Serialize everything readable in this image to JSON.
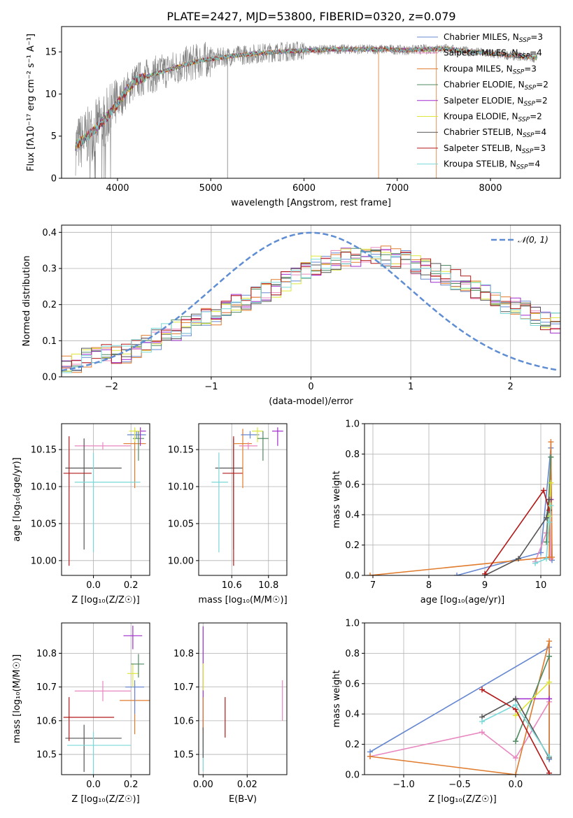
{
  "figure": {
    "title": "PLATE=2427, MJD=53800, FIBERID=0320, z=0.079"
  },
  "chart_data": [
    {
      "id": "spectrum",
      "type": "line",
      "title": "PLATE=2427, MJD=53800, FIBERID=0320, z=0.079",
      "xlabel": "wavelength [Angstrom, rest frame]",
      "ylabel": "Flux [fλ10⁻¹⁷ erg cm⁻² s⁻¹ A⁻¹]",
      "xlim": [
        3400,
        8750
      ],
      "ylim": [
        0,
        18
      ],
      "xticks": [
        4000,
        5000,
        6000,
        7000,
        8000
      ],
      "yticks": [
        0,
        5,
        10,
        15
      ],
      "grid": false,
      "legend_position": "top-right",
      "data_line_color": "#808080",
      "continuum": {
        "x": [
          3550,
          3700,
          3850,
          4000,
          4100,
          4200,
          4350,
          4500,
          4700,
          4900,
          5100,
          5300,
          5500,
          5700,
          5900,
          6100,
          6300,
          6500,
          6700,
          6900,
          7100,
          7300,
          7500,
          7700,
          7900,
          8100,
          8300,
          8500
        ],
        "y": [
          3.8,
          5.2,
          6.8,
          8.8,
          10.5,
          11.6,
          12.2,
          12.7,
          13.4,
          14.0,
          14.3,
          14.6,
          14.8,
          15.0,
          15.1,
          15.2,
          15.3,
          15.3,
          15.3,
          15.3,
          15.2,
          15.3,
          15.4,
          15.1,
          14.9,
          14.7,
          14.5,
          14.3
        ]
      },
      "series": [
        {
          "name": "Chabrier MILES, N_SSP=3",
          "label_main": "Chabrier MILES, N",
          "label_sub": "SSP",
          "label_tail": "=3",
          "color": "#6688d0"
        },
        {
          "name": "Salpeter MILES, N_SSP=4",
          "label_main": "Salpeter MILES, N",
          "label_sub": "SSP",
          "label_tail": "=4",
          "color": "#e887bf"
        },
        {
          "name": "Kroupa MILES, N_SSP=3",
          "label_main": "Kroupa MILES, N",
          "label_sub": "SSP",
          "label_tail": "=3",
          "color": "#e07b2d"
        },
        {
          "name": "Chabrier ELODIE, N_SSP=2",
          "label_main": "Chabrier ELODIE, N",
          "label_sub": "SSP",
          "label_tail": "=2",
          "color": "#4f8a60"
        },
        {
          "name": "Salpeter ELODIE, N_SSP=2",
          "label_main": "Salpeter ELODIE, N",
          "label_sub": "SSP",
          "label_tail": "=2",
          "color": "#a02ccd"
        },
        {
          "name": "Kroupa ELODIE, N_SSP=2",
          "label_main": "Kroupa ELODIE, N",
          "label_sub": "SSP",
          "label_tail": "=2",
          "color": "#dde63a"
        },
        {
          "name": "Chabrier STELIB, N_SSP=4",
          "label_main": "Chabrier STELIB, N",
          "label_sub": "SSP",
          "label_tail": "=4",
          "color": "#555555"
        },
        {
          "name": "Salpeter STELIB, N_SSP=3",
          "label_main": "Salpeter STELIB, N",
          "label_sub": "SSP",
          "label_tail": "=3",
          "color": "#b31919"
        },
        {
          "name": "Kroupa STELIB, N_SSP=4",
          "label_main": "Kroupa STELIB, N",
          "label_sub": "SSP",
          "label_tail": "=4",
          "color": "#7ad8d8"
        }
      ]
    },
    {
      "id": "residuals",
      "type": "bar",
      "xlabel": "(data-model)/error",
      "ylabel": "Normed distribution",
      "xlim": [
        -2.5,
        2.5
      ],
      "ylim": [
        0,
        0.42
      ],
      "xticks": [
        -2,
        -1,
        0,
        1,
        2
      ],
      "yticks": [
        0.0,
        0.1,
        0.2,
        0.3,
        0.4
      ],
      "grid": true,
      "legend_position": "top-right",
      "reference_curve": {
        "name": "𝒩(0, 1)",
        "mean": 0,
        "sigma": 1,
        "color": "#5f8dd3",
        "dash": true
      },
      "bin_width": 0.1,
      "bin_start": -2.5,
      "base_profile": [
        0.03,
        0.04,
        0.05,
        0.06,
        0.06,
        0.062,
        0.065,
        0.075,
        0.09,
        0.105,
        0.12,
        0.13,
        0.14,
        0.15,
        0.16,
        0.17,
        0.185,
        0.2,
        0.21,
        0.22,
        0.235,
        0.25,
        0.265,
        0.28,
        0.295,
        0.305,
        0.315,
        0.32,
        0.33,
        0.335,
        0.34,
        0.34,
        0.335,
        0.33,
        0.32,
        0.31,
        0.3,
        0.29,
        0.28,
        0.27,
        0.255,
        0.24,
        0.23,
        0.215,
        0.2,
        0.19,
        0.18,
        0.17,
        0.16,
        0.15,
        0.14,
        0.13,
        0.12,
        0.11,
        0.1,
        0.095,
        0.09,
        0.085,
        0.08,
        0.075,
        0.07,
        0.065,
        0.06,
        0.055,
        0.05,
        0.045,
        0.04,
        0.035,
        0.03,
        0.025,
        0.02,
        0.018,
        0.016,
        0.014,
        0.012,
        0.01
      ]
    },
    {
      "id": "age_vs_Z",
      "type": "scatter",
      "xlabel": "Z [log₁₀(Z/Z☉)]",
      "ylabel": "age  [log₁₀(age/yr)]",
      "xlim": [
        -0.17,
        0.3
      ],
      "ylim": [
        9.98,
        10.185
      ],
      "xticks": [
        0.0,
        0.2
      ],
      "yticks": [
        10.0,
        10.05,
        10.1,
        10.15
      ],
      "grid": true,
      "points": [
        {
          "x": 0.05,
          "y": 10.155,
          "xerr": [
            0.15,
            0.15
          ],
          "yerr": [
            0.005,
            0.005
          ],
          "color": "#e887bf"
        },
        {
          "x": 0.23,
          "y": 10.17,
          "xerr": [
            0.05,
            0.05
          ],
          "yerr": [
            0.005,
            0.005
          ],
          "color": "#6688d0"
        },
        {
          "x": 0.22,
          "y": 10.158,
          "xerr": [
            0.06,
            0.06
          ],
          "yerr": [
            0.06,
            0.02
          ],
          "color": "#e07b2d"
        },
        {
          "x": 0.24,
          "y": 10.165,
          "xerr": [
            0.03,
            0.03
          ],
          "yerr": [
            0.03,
            0.01
          ],
          "color": "#4f8a60"
        },
        {
          "x": 0.25,
          "y": 10.175,
          "xerr": [
            0.03,
            0.03
          ],
          "yerr": [
            0.02,
            0.005
          ],
          "color": "#a02ccd"
        },
        {
          "x": 0.22,
          "y": 10.175,
          "xerr": [
            0.03,
            0.03
          ],
          "yerr": [
            0.015,
            0.005
          ],
          "color": "#dde63a"
        },
        {
          "x": -0.05,
          "y": 10.125,
          "xerr": [
            0.1,
            0.2
          ],
          "yerr": [
            0.11,
            0.04
          ],
          "color": "#555555"
        },
        {
          "x": -0.13,
          "y": 10.118,
          "xerr": [
            0.03,
            0.12
          ],
          "yerr": [
            0.125,
            0.05
          ],
          "color": "#b31919"
        },
        {
          "x": 0.0,
          "y": 10.106,
          "xerr": [
            0.1,
            0.25
          ],
          "yerr": [
            0.095,
            0.04
          ],
          "color": "#7ad8d8"
        }
      ]
    },
    {
      "id": "age_vs_mass",
      "type": "scatter",
      "xlabel": "mass [log₁₀(M/M☉)]",
      "ylabel": "",
      "xlim": [
        10.42,
        10.9
      ],
      "ylim": [
        9.98,
        10.185
      ],
      "xticks": [
        10.6,
        10.8
      ],
      "yticks": [
        10.0,
        10.05,
        10.1,
        10.15
      ],
      "grid": true,
      "points": [
        {
          "x": 10.61,
          "y": 10.125,
          "xerr": [
            0.1,
            0.05
          ],
          "yerr": [
            0.11,
            0.04
          ],
          "color": "#555555"
        },
        {
          "x": 10.61,
          "y": 10.118,
          "xerr": [
            0.06,
            0.05
          ],
          "yerr": [
            0.125,
            0.05
          ],
          "color": "#b31919"
        },
        {
          "x": 10.53,
          "y": 10.106,
          "xerr": [
            0.04,
            0.05
          ],
          "yerr": [
            0.095,
            0.04
          ],
          "color": "#7ad8d8"
        },
        {
          "x": 10.66,
          "y": 10.158,
          "xerr": [
            0.05,
            0.05
          ],
          "yerr": [
            0.06,
            0.02
          ],
          "color": "#e07b2d"
        },
        {
          "x": 10.69,
          "y": 10.155,
          "xerr": [
            0.05,
            0.05
          ],
          "yerr": [
            0.005,
            0.005
          ],
          "color": "#e887bf"
        },
        {
          "x": 10.7,
          "y": 10.17,
          "xerr": [
            0.05,
            0.05
          ],
          "yerr": [
            0.005,
            0.005
          ],
          "color": "#6688d0"
        },
        {
          "x": 10.74,
          "y": 10.175,
          "xerr": [
            0.03,
            0.03
          ],
          "yerr": [
            0.015,
            0.005
          ],
          "color": "#dde63a"
        },
        {
          "x": 10.77,
          "y": 10.165,
          "xerr": [
            0.03,
            0.03
          ],
          "yerr": [
            0.03,
            0.01
          ],
          "color": "#4f8a60"
        },
        {
          "x": 10.85,
          "y": 10.175,
          "xerr": [
            0.03,
            0.03
          ],
          "yerr": [
            0.02,
            0.005
          ],
          "color": "#a02ccd"
        }
      ]
    },
    {
      "id": "mass_weight_vs_age",
      "type": "line",
      "xlabel": "age  [log₁₀(age/yr)]",
      "ylabel": "mass weight",
      "xlim": [
        6.85,
        10.35
      ],
      "ylim": [
        0,
        1
      ],
      "xticks": [
        7,
        8,
        9,
        10
      ],
      "yticks": [
        0.0,
        0.2,
        0.4,
        0.6,
        0.8,
        1.0
      ],
      "grid": true,
      "series": [
        {
          "color": "#6688d0",
          "x": [
            8.5,
            10.0,
            10.18,
            10.2
          ],
          "y": [
            0.0,
            0.15,
            0.84,
            0.1
          ]
        },
        {
          "color": "#e887bf",
          "x": [
            9.9,
            10.1,
            10.15,
            10.18
          ],
          "y": [
            0.09,
            0.28,
            0.48,
            0.11
          ]
        },
        {
          "color": "#e07b2d",
          "x": [
            6.95,
            10.15,
            10.18,
            10.2
          ],
          "y": [
            0.0,
            0.12,
            0.88,
            0.12
          ]
        },
        {
          "color": "#4f8a60",
          "x": [
            10.1,
            10.18
          ],
          "y": [
            0.22,
            0.78
          ]
        },
        {
          "color": "#a02ccd",
          "x": [
            10.15,
            10.18
          ],
          "y": [
            0.5,
            0.5
          ]
        },
        {
          "color": "#dde63a",
          "x": [
            10.15,
            10.18
          ],
          "y": [
            0.39,
            0.61
          ]
        },
        {
          "color": "#555555",
          "x": [
            9.0,
            9.6,
            10.1,
            10.15
          ],
          "y": [
            0.0,
            0.11,
            0.38,
            0.5
          ]
        },
        {
          "color": "#b31919",
          "x": [
            9.0,
            10.05,
            10.15
          ],
          "y": [
            0.01,
            0.56,
            0.43
          ]
        },
        {
          "color": "#7ad8d8",
          "x": [
            9.9,
            10.1,
            10.15,
            10.18
          ],
          "y": [
            0.08,
            0.11,
            0.35,
            0.46
          ]
        }
      ]
    },
    {
      "id": "mass_vs_Z",
      "type": "scatter",
      "xlabel": "Z [log₁₀(Z/Z☉)]",
      "ylabel": "mass [log₁₀(M/M☉)]",
      "xlim": [
        -0.17,
        0.3
      ],
      "ylim": [
        10.44,
        10.89
      ],
      "xticks": [
        0.0,
        0.2
      ],
      "yticks": [
        10.5,
        10.6,
        10.7,
        10.8
      ],
      "grid": true,
      "points": [
        {
          "x": -0.05,
          "y": 10.548,
          "xerr": [
            0.1,
            0.2
          ],
          "yerr": [
            0.1,
            0.04
          ],
          "color": "#555555"
        },
        {
          "x": -0.13,
          "y": 10.61,
          "xerr": [
            0.03,
            0.24
          ],
          "yerr": [
            0.07,
            0.06
          ],
          "color": "#b31919"
        },
        {
          "x": 0.0,
          "y": 10.527,
          "xerr": [
            0.14,
            0.2
          ],
          "yerr": [
            0.1,
            0.04
          ],
          "color": "#7ad8d8"
        },
        {
          "x": 0.22,
          "y": 10.66,
          "xerr": [
            0.08,
            0.08
          ],
          "yerr": [
            0.1,
            0.05
          ],
          "color": "#e07b2d"
        },
        {
          "x": 0.05,
          "y": 10.688,
          "xerr": [
            0.15,
            0.15
          ],
          "yerr": [
            0.03,
            0.03
          ],
          "color": "#e887bf"
        },
        {
          "x": 0.22,
          "y": 10.7,
          "xerr": [
            0.05,
            0.05
          ],
          "yerr": [
            0.08,
            0.02
          ],
          "color": "#6688d0"
        },
        {
          "x": 0.21,
          "y": 10.74,
          "xerr": [
            0.03,
            0.03
          ],
          "yerr": [
            0.04,
            0.03
          ],
          "color": "#dde63a"
        },
        {
          "x": 0.24,
          "y": 10.768,
          "xerr": [
            0.04,
            0.03
          ],
          "yerr": [
            0.04,
            0.03
          ],
          "color": "#4f8a60"
        },
        {
          "x": 0.21,
          "y": 10.852,
          "xerr": [
            0.05,
            0.05
          ],
          "yerr": [
            0.04,
            0.03
          ],
          "color": "#a02ccd"
        }
      ]
    },
    {
      "id": "mass_vs_EBV",
      "type": "scatter",
      "xlabel": "E(B-V)",
      "ylabel": "",
      "xlim": [
        -0.002,
        0.038
      ],
      "ylim": [
        10.44,
        10.89
      ],
      "xticks": [
        0.0,
        0.02
      ],
      "yticks": [
        10.5,
        10.6,
        10.7,
        10.8
      ],
      "grid": true,
      "points": [
        {
          "x": 0.0,
          "y": 10.7,
          "xerr": [
            0,
            0
          ],
          "yerr": [
            0.13,
            0.18
          ],
          "color": "#a02ccd"
        },
        {
          "x": 0.0,
          "y": 10.74,
          "xerr": [
            0,
            0
          ],
          "yerr": [
            0.05,
            0.03
          ],
          "color": "#dde63a"
        },
        {
          "x": 0.0,
          "y": 10.62,
          "xerr": [
            0,
            0
          ],
          "yerr": [
            0.1,
            0.05
          ],
          "color": "#e07b2d"
        },
        {
          "x": 0.0,
          "y": 10.53,
          "xerr": [
            0,
            0
          ],
          "yerr": [
            0.08,
            0.03
          ],
          "color": "#7ad8d8"
        },
        {
          "x": 0.0,
          "y": 10.55,
          "xerr": [
            0,
            0
          ],
          "yerr": [
            0.06,
            0.03
          ],
          "color": "#555555"
        },
        {
          "x": 0.01,
          "y": 10.61,
          "xerr": [
            0,
            0
          ],
          "yerr": [
            0.06,
            0.06
          ],
          "color": "#b31919"
        },
        {
          "x": 0.036,
          "y": 10.66,
          "xerr": [
            0,
            0
          ],
          "yerr": [
            0.06,
            0.06
          ],
          "color": "#e887bf"
        }
      ]
    },
    {
      "id": "mass_weight_vs_Z",
      "type": "line",
      "xlabel": "Z [log₁₀(Z/Z☉)]",
      "ylabel": "mass weight",
      "xlim": [
        -1.35,
        0.4
      ],
      "ylim": [
        0,
        1
      ],
      "xticks": [
        -1.0,
        -0.5,
        0.0
      ],
      "yticks": [
        0.0,
        0.2,
        0.4,
        0.6,
        0.8,
        1.0
      ],
      "grid": true,
      "series": [
        {
          "color": "#6688d0",
          "x": [
            -1.3,
            0.3,
            0.3
          ],
          "y": [
            0.15,
            0.84,
            0.1
          ]
        },
        {
          "color": "#e887bf",
          "x": [
            -1.3,
            -0.3,
            0.0,
            0.3
          ],
          "y": [
            0.12,
            0.28,
            0.11,
            0.48
          ]
        },
        {
          "color": "#e07b2d",
          "x": [
            -1.3,
            0.0,
            0.3,
            0.3
          ],
          "y": [
            0.12,
            0.0,
            0.88,
            0.12
          ]
        },
        {
          "color": "#4f8a60",
          "x": [
            0.0,
            0.3
          ],
          "y": [
            0.22,
            0.78
          ]
        },
        {
          "color": "#a02ccd",
          "x": [
            0.0,
            0.3
          ],
          "y": [
            0.5,
            0.5
          ]
        },
        {
          "color": "#dde63a",
          "x": [
            0.0,
            0.3
          ],
          "y": [
            0.39,
            0.61
          ]
        },
        {
          "color": "#555555",
          "x": [
            -0.3,
            0.0,
            0.3
          ],
          "y": [
            0.38,
            0.5,
            0.11
          ]
        },
        {
          "color": "#b31919",
          "x": [
            -0.3,
            0.0,
            0.3
          ],
          "y": [
            0.56,
            0.43,
            0.01
          ]
        },
        {
          "color": "#7ad8d8",
          "x": [
            -0.3,
            0.0,
            0.3
          ],
          "y": [
            0.35,
            0.46,
            0.12
          ]
        }
      ]
    }
  ]
}
